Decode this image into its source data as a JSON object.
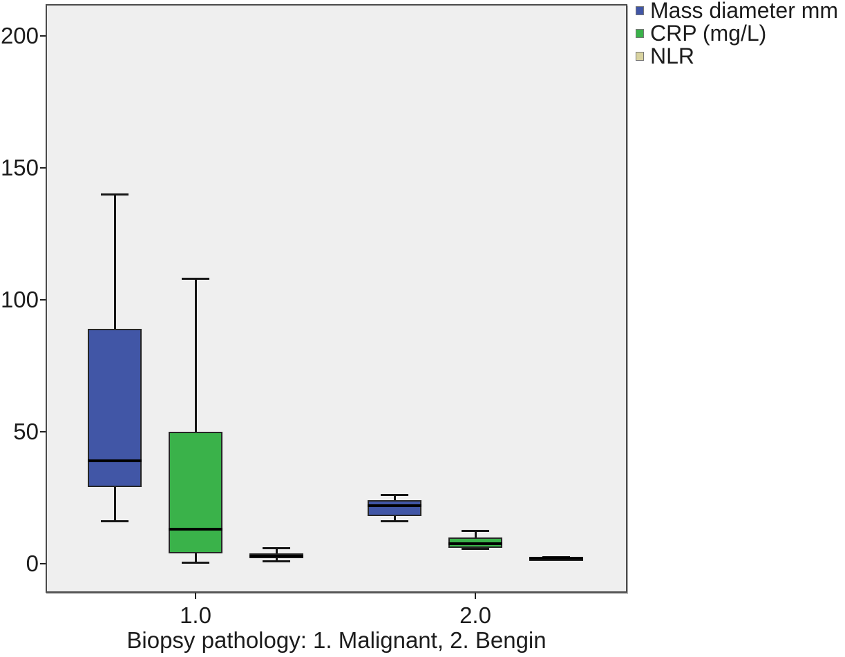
{
  "chart_data": {
    "type": "box",
    "title": "",
    "xlabel": "Biopsy pathology: 1. Malignant, 2. Bengin",
    "ylabel": "",
    "ylim": [
      -11,
      212
    ],
    "y_ticks": [
      0,
      50,
      100,
      150,
      200
    ],
    "categories": [
      "1.0",
      "2.0"
    ],
    "grid": false,
    "legend_position": "top-right",
    "plot_background": "#efefef",
    "series": [
      {
        "name": "Mass diameter mm",
        "color": "#4156a6",
        "boxes": [
          {
            "category": "1.0",
            "whisker_low": 16,
            "q1": 29,
            "median": 39,
            "q3": 89,
            "whisker_high": 140
          },
          {
            "category": "2.0",
            "whisker_low": 16,
            "q1": 18,
            "median": 22,
            "q3": 24,
            "whisker_high": 26
          }
        ]
      },
      {
        "name": "CRP (mg/L)",
        "color": "#3ab24a",
        "boxes": [
          {
            "category": "1.0",
            "whisker_low": 0.5,
            "q1": 4,
            "median": 13,
            "q3": 50,
            "whisker_high": 108
          },
          {
            "category": "2.0",
            "whisker_low": 5.5,
            "q1": 6,
            "median": 7.5,
            "q3": 10,
            "whisker_high": 12.5
          }
        ]
      },
      {
        "name": "NLR",
        "color": "#d9d3a0",
        "boxes": [
          {
            "category": "1.0",
            "whisker_low": 1,
            "q1": 2,
            "median": 3,
            "q3": 4,
            "whisker_high": 6
          },
          {
            "category": "2.0",
            "whisker_low": 1.4,
            "q1": 1.7,
            "median": 2,
            "q3": 2.2,
            "whisker_high": 2.4
          }
        ]
      }
    ]
  }
}
